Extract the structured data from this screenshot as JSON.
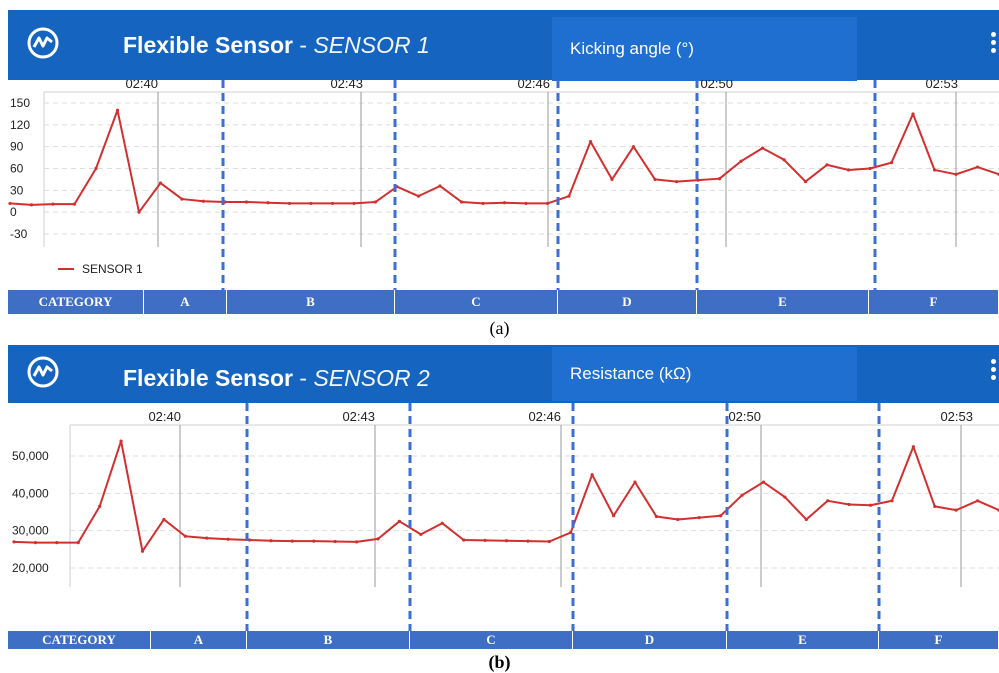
{
  "panels": [
    {
      "app_title": "Flexible Sensor",
      "title_separator": "-",
      "sensor_name": "SENSOR 1",
      "measure_label": "Kicking angle (°)",
      "caption": "(a)",
      "categories": [
        "CATEGORY",
        "A",
        "B",
        "C",
        "D",
        "E",
        "F"
      ]
    },
    {
      "app_title": "Flexible Sensor",
      "title_separator": "-",
      "sensor_name": "SENSOR 2",
      "measure_label": "Resistance (kΩ)",
      "caption": "(b)",
      "categories": [
        "CATEGORY",
        "A",
        "B",
        "C",
        "D",
        "E",
        "F"
      ]
    }
  ],
  "colors": {
    "appbar": "#1565c0",
    "series": "#d32f2f",
    "divider": "#3b6fd6",
    "category_bar": "#3f6fc4"
  },
  "chart_data": [
    {
      "type": "line",
      "time_ticks": [
        "02:40",
        "02:43",
        "02:46",
        "02:50",
        "02:53"
      ],
      "yticks": [
        150,
        120,
        90,
        60,
        30,
        0,
        -30
      ],
      "ylim": [
        -30,
        150
      ],
      "legend": [
        "SENSOR 1"
      ],
      "legend_position": "bottom-left",
      "grid": true,
      "series": [
        {
          "name": "SENSOR 1",
          "values": [
            12,
            10,
            11,
            11,
            60,
            140,
            0,
            40,
            18,
            15,
            14,
            14,
            13,
            12,
            12,
            12,
            12,
            14,
            35,
            22,
            36,
            14,
            12,
            13,
            12,
            12,
            22,
            97,
            45,
            90,
            45,
            42,
            44,
            46,
            70,
            88,
            72,
            42,
            65,
            58,
            60,
            68,
            135,
            58,
            52,
            62,
            52
          ]
        }
      ]
    },
    {
      "type": "line",
      "time_ticks": [
        "02:40",
        "02:43",
        "02:46",
        "02:50",
        "02:53"
      ],
      "yticks": [
        "50,000",
        "40,000",
        "30,000",
        "20,000"
      ],
      "ylim": [
        10000,
        60000
      ],
      "grid": true,
      "series": [
        {
          "name": "",
          "values": [
            27000,
            26800,
            26800,
            26800,
            36500,
            54000,
            24500,
            33000,
            28500,
            28000,
            27700,
            27500,
            27300,
            27200,
            27200,
            27100,
            27000,
            27800,
            32500,
            29000,
            32000,
            27500,
            27400,
            27300,
            27200,
            27100,
            29500,
            45000,
            34000,
            43000,
            33800,
            33000,
            33500,
            34000,
            39500,
            43000,
            39000,
            33000,
            38000,
            37000,
            36800,
            38000,
            52500,
            36500,
            35500,
            38000,
            35500
          ]
        }
      ]
    }
  ]
}
